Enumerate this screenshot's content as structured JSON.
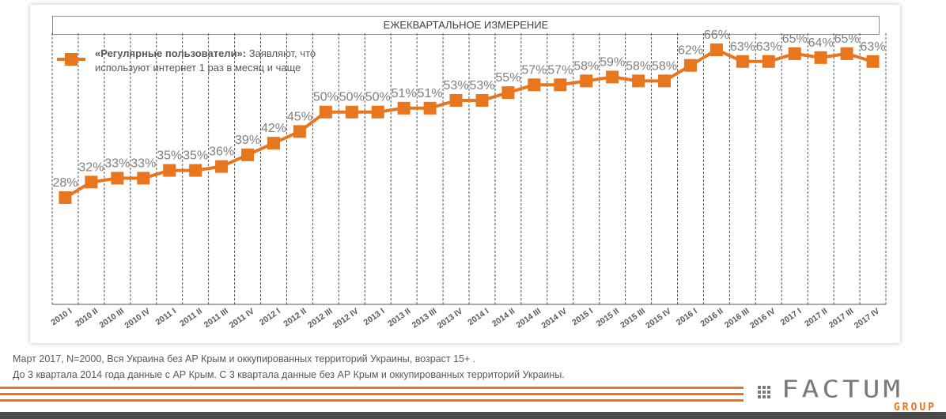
{
  "header": {
    "title": "ЕЖЕКВАРТАЛЬНОЕ ИЗМЕРЕНИЕ"
  },
  "legend": {
    "bold": "«Регулярные пользователи»:",
    "line1_rest": " Заявляют, что",
    "line2": "используют интернет 1 раз в месяц и чаще"
  },
  "colors": {
    "series": "#e8761e",
    "labels": "#7f7f7f",
    "brand_grey": "#4a4a4a"
  },
  "chart_data": {
    "type": "line",
    "title": "ЕЖЕКВАРТАЛЬНОЕ ИЗМЕРЕНИЕ",
    "xlabel": "",
    "ylabel": "",
    "ylim": [
      0,
      70
    ],
    "grid": "vertical dashed",
    "legend_position": "top-left",
    "categories": [
      "2010 I",
      "2010 II",
      "2010 III",
      "2010 IV",
      "2011 I",
      "2011 II",
      "2011 III",
      "2011 IV",
      "2012 I",
      "2012 II",
      "2012 III",
      "2012 IV",
      "2013 I",
      "2013 II",
      "2013 III",
      "2013 IV",
      "2014 I",
      "2014 II",
      "2014 III",
      "2014 IV",
      "2015 I",
      "2015 II",
      "2015 III",
      "2015 IV",
      "2016 I",
      "2016 II",
      "2016 III",
      "2016 IV",
      "2017 I",
      "2017 II",
      "2017 III",
      "2017 IV"
    ],
    "series": [
      {
        "name": "«Регулярные пользователи»: Заявляют, что используют интернет 1 раз в месяц и чаще",
        "values": [
          28,
          32,
          33,
          33,
          35,
          35,
          36,
          39,
          42,
          45,
          50,
          50,
          50,
          51,
          51,
          53,
          53,
          55,
          57,
          57,
          58,
          59,
          58,
          58,
          62,
          66,
          63,
          63,
          65,
          64,
          65,
          63
        ],
        "labels": [
          "28%",
          "32%",
          "33%",
          "33%",
          "35%",
          "35%",
          "36%",
          "39%",
          "42%",
          "45%",
          "50%",
          "50%",
          "50%",
          "51%",
          "51%",
          "53%",
          "53%",
          "55%",
          "57%",
          "57%",
          "58%",
          "59%",
          "58%",
          "58%",
          "62%",
          "66%",
          "63%",
          "63%",
          "65%",
          "64%",
          "65%",
          "63%"
        ]
      }
    ]
  },
  "footnotes": {
    "line1": "Март 2017, N=2000, Вся Украина без АР Крым и оккупированных территорий Украины, возраст 15+ .",
    "line2": "До 3 квартала 2014 года данные с АР Крым. С 3 квартала данные без АР Крым и оккупированных территорий Украины."
  },
  "logo": {
    "word": "FACTUM",
    "sub": "GROUP"
  }
}
